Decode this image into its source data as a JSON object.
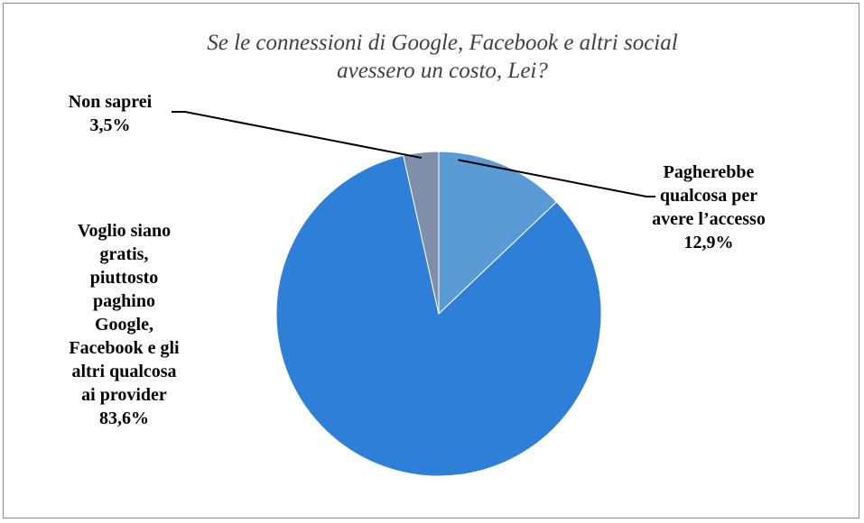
{
  "chart_data": {
    "type": "pie",
    "title_lines": [
      "Se le connessioni di Google, Facebook e altri social",
      "avessero un costo, Lei?"
    ],
    "slices": [
      {
        "label_lines": [
          "Pagherebbe",
          "qualcosa per",
          "avere l’accesso"
        ],
        "value": 12.9,
        "value_label": "12,9%",
        "color": "#5b9bd5"
      },
      {
        "label_lines": [
          "Voglio siano",
          "gratis,",
          "piuttosto",
          "paghino",
          "Google,",
          "Facebook e gli",
          "altri qualcosa",
          "ai provider"
        ],
        "value": 83.6,
        "value_label": "83,6%",
        "color": "#2e7fd8"
      },
      {
        "label_lines": [
          "Non saprei"
        ],
        "value": 3.5,
        "value_label": "3,5%",
        "color": "#7f8fa9"
      }
    ],
    "start_angle_deg": 0,
    "direction": "clockwise",
    "legend": "none"
  }
}
